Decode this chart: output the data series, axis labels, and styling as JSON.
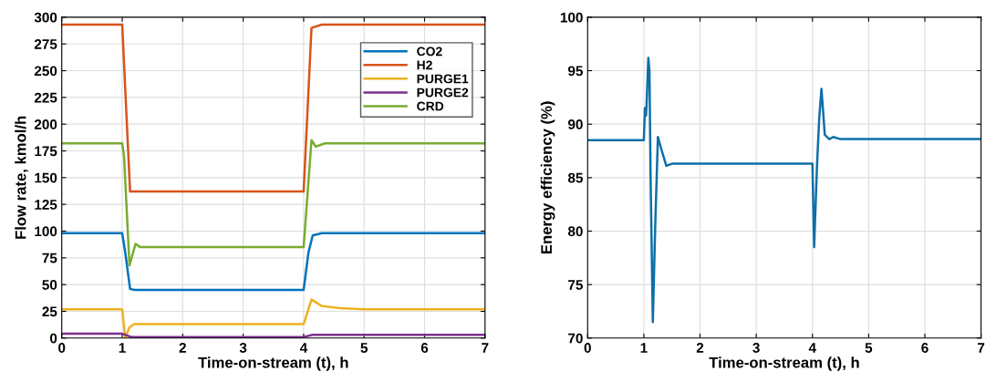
{
  "chart_data": [
    {
      "type": "line",
      "xlabel": "Time-on-stream (t), h",
      "ylabel": "Flow rate, kmol/h",
      "xlim": [
        0,
        7
      ],
      "ylim": [
        0,
        300
      ],
      "xticks": [
        0,
        1,
        2,
        3,
        4,
        5,
        6,
        7
      ],
      "yticks": [
        0,
        25,
        50,
        75,
        100,
        125,
        150,
        175,
        200,
        225,
        250,
        275,
        300
      ],
      "grid": true,
      "legend": "top right",
      "line_style": "solid",
      "marker": "none",
      "series": [
        {
          "name": "CO2",
          "color": "#0072bd",
          "x": [
            0,
            1.0,
            1.05,
            1.13,
            1.2,
            4.0,
            4.08,
            4.15,
            4.3,
            7
          ],
          "values": [
            98,
            98,
            80,
            46,
            45,
            45,
            80,
            96,
            98,
            98
          ]
        },
        {
          "name": "H2",
          "color": "#d95319",
          "x": [
            0,
            1.0,
            1.13,
            4.0,
            4.13,
            4.3,
            7
          ],
          "values": [
            293,
            293,
            137,
            137,
            290,
            293,
            293
          ]
        },
        {
          "name": "PURGE1",
          "color": "#edb120",
          "x": [
            0,
            1.0,
            1.05,
            1.12,
            1.2,
            4.0,
            4.13,
            4.3,
            4.6,
            5.0,
            7
          ],
          "values": [
            27,
            27,
            0,
            10,
            13,
            13,
            36,
            30,
            28,
            27,
            27
          ]
        },
        {
          "name": "PURGE2",
          "color": "#7e2f8e",
          "x": [
            0,
            1.0,
            1.15,
            4.0,
            4.15,
            7
          ],
          "values": [
            4,
            4,
            1,
            1,
            3,
            3
          ]
        },
        {
          "name": "CRD",
          "color": "#77ac30",
          "x": [
            0,
            1.0,
            1.03,
            1.12,
            1.22,
            1.3,
            4.0,
            4.13,
            4.2,
            4.35,
            7
          ],
          "values": [
            182,
            182,
            170,
            68,
            88,
            85,
            85,
            185,
            179,
            182,
            182
          ]
        }
      ]
    },
    {
      "type": "line",
      "xlabel": "Time-on-stream (t), h",
      "ylabel": "Energy efficiency (%)",
      "xlim": [
        0,
        7
      ],
      "ylim": [
        70,
        100
      ],
      "xticks": [
        0,
        1,
        2,
        3,
        4,
        5,
        6,
        7
      ],
      "yticks": [
        70,
        75,
        80,
        85,
        90,
        95,
        100
      ],
      "grid": true,
      "line_style": "solid",
      "marker": "none",
      "series": [
        {
          "color": "#0e6fa8",
          "x": [
            0,
            1.0,
            1.02,
            1.04,
            1.05,
            1.08,
            1.1,
            1.12,
            1.16,
            1.2,
            1.25,
            1.32,
            1.4,
            1.5,
            4.0,
            4.03,
            4.08,
            4.12,
            4.16,
            4.22,
            4.3,
            4.37,
            4.5,
            7
          ],
          "values": [
            88.5,
            88.5,
            91.5,
            90.8,
            92,
            96.2,
            95,
            85,
            71.5,
            80,
            88.8,
            87.5,
            86.1,
            86.3,
            86.3,
            78.5,
            86,
            90.5,
            93.3,
            89,
            88.6,
            88.8,
            88.6,
            88.6
          ]
        }
      ]
    }
  ]
}
